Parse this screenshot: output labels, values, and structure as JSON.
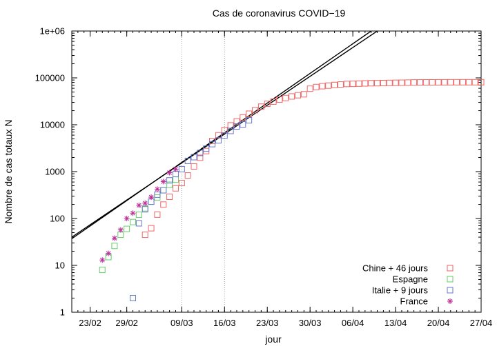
{
  "chart_data": {
    "type": "scatter",
    "title": "Cas de coronavirus COVID−19",
    "xlabel": "jour",
    "ylabel": "Nombre de cas totaux N",
    "yscale": "log",
    "ylim": [
      1,
      1000000
    ],
    "xlim": [
      "2020-02-20",
      "2020-04-27"
    ],
    "x_ticks": [
      {
        "date": "2020-02-23",
        "label": "23/02"
      },
      {
        "date": "2020-02-29",
        "label": "29/02"
      },
      {
        "date": "2020-03-09",
        "label": "09/03"
      },
      {
        "date": "2020-03-16",
        "label": "16/03"
      },
      {
        "date": "2020-03-23",
        "label": "23/03"
      },
      {
        "date": "2020-03-30",
        "label": "30/03"
      },
      {
        "date": "2020-04-06",
        "label": "06/04"
      },
      {
        "date": "2020-04-13",
        "label": "13/04"
      },
      {
        "date": "2020-04-20",
        "label": "20/04"
      },
      {
        "date": "2020-04-27",
        "label": "27/04"
      }
    ],
    "y_ticks": [
      {
        "value": 1,
        "label": "1"
      },
      {
        "value": 10,
        "label": "10"
      },
      {
        "value": 100,
        "label": "100"
      },
      {
        "value": 1000,
        "label": "1000"
      },
      {
        "value": 10000,
        "label": "10000"
      },
      {
        "value": 100000,
        "label": "100000"
      },
      {
        "value": 1000000,
        "label": "1e+06"
      }
    ],
    "vlines": [
      "2020-03-09",
      "2020-03-16"
    ],
    "grid": false,
    "legend_position": "bottom-right",
    "fit_lines": [
      {
        "points": [
          [
            "2020-02-20",
            37
          ],
          [
            "2020-04-09",
            1000000
          ]
        ]
      },
      {
        "points": [
          [
            "2020-02-20",
            40
          ],
          [
            "2020-04-10",
            1000000
          ]
        ]
      }
    ],
    "series": [
      {
        "name": "Chine + 46 jours",
        "marker": "square",
        "color": "#ee6666",
        "points": [
          [
            "2020-03-03",
            45
          ],
          [
            "2020-03-04",
            62
          ],
          [
            "2020-03-05",
            121
          ],
          [
            "2020-03-06",
            198
          ],
          [
            "2020-03-07",
            291
          ],
          [
            "2020-03-08",
            440
          ],
          [
            "2020-03-09",
            571
          ],
          [
            "2020-03-10",
            830
          ],
          [
            "2020-03-11",
            1287
          ],
          [
            "2020-03-12",
            1975
          ],
          [
            "2020-03-13",
            2744
          ],
          [
            "2020-03-14",
            4515
          ],
          [
            "2020-03-15",
            5974
          ],
          [
            "2020-03-16",
            7711
          ],
          [
            "2020-03-17",
            9692
          ],
          [
            "2020-03-18",
            11791
          ],
          [
            "2020-03-19",
            14380
          ],
          [
            "2020-03-20",
            17205
          ],
          [
            "2020-03-21",
            20440
          ],
          [
            "2020-03-22",
            24324
          ],
          [
            "2020-03-23",
            28018
          ],
          [
            "2020-03-24",
            31161
          ],
          [
            "2020-03-25",
            34546
          ],
          [
            "2020-03-26",
            37198
          ],
          [
            "2020-03-27",
            40171
          ],
          [
            "2020-03-28",
            42638
          ],
          [
            "2020-03-29",
            44653
          ],
          [
            "2020-03-30",
            58761
          ],
          [
            "2020-03-31",
            63851
          ],
          [
            "2020-04-01",
            66492
          ],
          [
            "2020-04-02",
            68500
          ],
          [
            "2020-04-03",
            70548
          ],
          [
            "2020-04-04",
            72436
          ],
          [
            "2020-04-05",
            74185
          ],
          [
            "2020-04-06",
            74576
          ],
          [
            "2020-04-07",
            75465
          ],
          [
            "2020-04-08",
            76288
          ],
          [
            "2020-04-09",
            76936
          ],
          [
            "2020-04-10",
            77150
          ],
          [
            "2020-04-11",
            77658
          ],
          [
            "2020-04-12",
            78064
          ],
          [
            "2020-04-13",
            78497
          ],
          [
            "2020-04-14",
            78824
          ],
          [
            "2020-04-15",
            79251
          ],
          [
            "2020-04-16",
            79824
          ],
          [
            "2020-04-17",
            80026
          ],
          [
            "2020-04-18",
            80151
          ],
          [
            "2020-04-19",
            80270
          ],
          [
            "2020-04-20",
            80409
          ],
          [
            "2020-04-21",
            80552
          ],
          [
            "2020-04-22",
            80651
          ],
          [
            "2020-04-23",
            80695
          ],
          [
            "2020-04-24",
            80735
          ],
          [
            "2020-04-25",
            80754
          ],
          [
            "2020-04-26",
            80778
          ],
          [
            "2020-04-27",
            80793
          ]
        ]
      },
      {
        "name": "Espagne",
        "marker": "square",
        "color": "#66cc66",
        "points": [
          [
            "2020-02-25",
            8
          ],
          [
            "2020-02-26",
            15
          ],
          [
            "2020-02-27",
            26
          ],
          [
            "2020-02-28",
            45
          ],
          [
            "2020-02-29",
            60
          ],
          [
            "2020-03-01",
            84
          ],
          [
            "2020-03-02",
            120
          ],
          [
            "2020-03-03",
            165
          ],
          [
            "2020-03-04",
            228
          ],
          [
            "2020-03-05",
            282
          ],
          [
            "2020-03-06",
            401
          ],
          [
            "2020-03-07",
            525
          ],
          [
            "2020-03-08",
            674
          ]
        ]
      },
      {
        "name": "Italie + 9 jours",
        "marker": "square",
        "color": "#6677cc",
        "points": [
          [
            "2020-03-01",
            2
          ],
          [
            "2020-03-02",
            79
          ],
          [
            "2020-03-03",
            157
          ],
          [
            "2020-03-04",
            229
          ],
          [
            "2020-03-05",
            323
          ],
          [
            "2020-03-06",
            400
          ],
          [
            "2020-03-07",
            650
          ],
          [
            "2020-03-08",
            888
          ],
          [
            "2020-03-09",
            1128
          ],
          [
            "2020-03-10",
            1694
          ],
          [
            "2020-03-11",
            2036
          ],
          [
            "2020-03-12",
            2502
          ],
          [
            "2020-03-13",
            3089
          ],
          [
            "2020-03-14",
            3858
          ],
          [
            "2020-03-15",
            4636
          ],
          [
            "2020-03-16",
            5883
          ],
          [
            "2020-03-17",
            7375
          ],
          [
            "2020-03-18",
            9172
          ],
          [
            "2020-03-19",
            10149
          ],
          [
            "2020-03-20",
            12462
          ]
        ]
      },
      {
        "name": "France",
        "marker": "star",
        "color": "#bb3399",
        "points": [
          [
            "2020-02-25",
            13
          ],
          [
            "2020-02-26",
            18
          ],
          [
            "2020-02-27",
            38
          ],
          [
            "2020-02-28",
            57
          ],
          [
            "2020-02-29",
            100
          ],
          [
            "2020-03-01",
            130
          ],
          [
            "2020-03-02",
            191
          ],
          [
            "2020-03-03",
            212
          ],
          [
            "2020-03-04",
            285
          ],
          [
            "2020-03-05",
            423
          ],
          [
            "2020-03-06",
            613
          ],
          [
            "2020-03-07",
            949
          ],
          [
            "2020-03-08",
            1126
          ]
        ]
      }
    ]
  }
}
